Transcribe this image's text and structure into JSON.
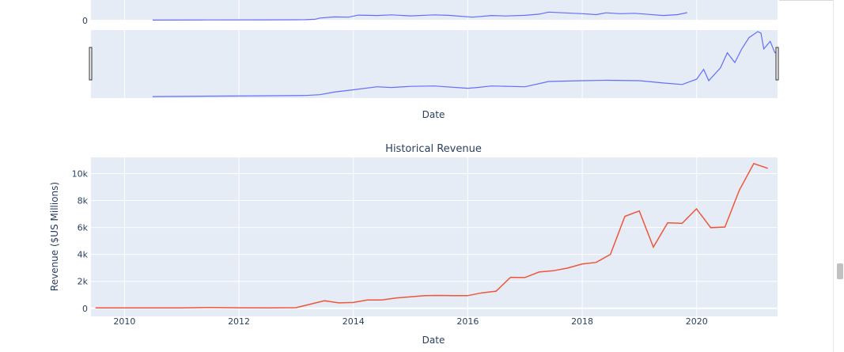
{
  "colors": {
    "plot_bg": "#e5ecf6",
    "grid": "#ffffff",
    "stock_line": "#636efa",
    "revenue_line": "#ef553b",
    "text": "#2a3f5f"
  },
  "chart_data": [
    {
      "type": "line",
      "title": "",
      "xlabel": "",
      "ylabel": "",
      "y_tick_labels": [
        "0"
      ],
      "xlim": [
        "2009-06-01",
        "2021-06-01"
      ],
      "ylim": [
        0,
        900
      ],
      "grid": true,
      "series": [
        {
          "x": [
            "2010-06-29",
            "2011-06-01",
            "2012-06-01",
            "2013-01-01",
            "2013-03-01",
            "2013-05-01",
            "2013-06-01",
            "2013-09-01",
            "2013-12-01",
            "2014-02-01",
            "2014-06-01",
            "2014-09-01",
            "2015-01-01",
            "2015-06-01",
            "2015-09-01",
            "2016-02-01",
            "2016-06-01",
            "2016-09-01",
            "2017-01-01",
            "2017-04-01",
            "2017-06-01",
            "2017-09-01",
            "2018-01-01",
            "2018-04-01",
            "2018-06-01",
            "2018-09-01",
            "2018-12-01",
            "2019-03-01",
            "2019-06-01",
            "2019-09-01",
            "2019-11-01"
          ],
          "y": [
            20,
            27,
            30,
            33,
            38,
            55,
            110,
            160,
            150,
            240,
            220,
            250,
            205,
            250,
            230,
            150,
            220,
            200,
            230,
            280,
            370,
            340,
            300,
            260,
            340,
            300,
            320,
            270,
            220,
            260,
            345
          ]
        }
      ]
    },
    {
      "type": "line",
      "title": "",
      "xlabel": "Date",
      "ylabel": "",
      "xlim": [
        "2009-06-01",
        "2021-06-01"
      ],
      "ylim": [
        0,
        900
      ],
      "grid": true,
      "series": [
        {
          "x": [
            "2010-06-29",
            "2012-06-01",
            "2013-03-01",
            "2013-06-01",
            "2013-09-01",
            "2014-01-01",
            "2014-06-01",
            "2014-09-01",
            "2015-01-01",
            "2015-06-01",
            "2016-01-01",
            "2016-03-01",
            "2016-06-01",
            "2017-01-01",
            "2017-06-01",
            "2018-01-01",
            "2018-06-01",
            "2019-01-01",
            "2019-06-01",
            "2019-10-01",
            "2020-01-01",
            "2020-02-15",
            "2020-03-18",
            "2020-06-01",
            "2020-07-15",
            "2020-09-01",
            "2020-10-15",
            "2020-12-01",
            "2021-01-26",
            "2021-02-15",
            "2021-03-05",
            "2021-04-15",
            "2021-05-15",
            "2021-06-01"
          ],
          "y": [
            20,
            30,
            35,
            45,
            80,
            110,
            150,
            140,
            155,
            160,
            130,
            140,
            160,
            150,
            220,
            230,
            235,
            230,
            200,
            180,
            250,
            380,
            230,
            400,
            600,
            470,
            650,
            800,
            880,
            860,
            650,
            750,
            600,
            620
          ]
        }
      ]
    },
    {
      "type": "line",
      "title": "Historical Revenue",
      "xlabel": "Date",
      "ylabel": "Revenue ($US Millions)",
      "xlim": [
        "2009-06-01",
        "2021-06-01"
      ],
      "ylim": [
        -600,
        11200
      ],
      "y_ticks": [
        0,
        2000,
        4000,
        6000,
        8000,
        10000
      ],
      "y_tick_labels": [
        "0",
        "2k",
        "4k",
        "6k",
        "8k",
        "10k"
      ],
      "x_tick_labels": [
        "2010",
        "2012",
        "2014",
        "2016",
        "2018",
        "2020"
      ],
      "grid": true,
      "series": [
        {
          "x": [
            "2009-06-30",
            "2009-12-31",
            "2010-06-30",
            "2010-12-31",
            "2011-06-30",
            "2011-12-31",
            "2012-06-30",
            "2012-12-31",
            "2013-03-31",
            "2013-06-30",
            "2013-09-30",
            "2013-12-31",
            "2014-03-31",
            "2014-06-30",
            "2014-09-30",
            "2014-12-31",
            "2015-03-31",
            "2015-06-30",
            "2015-09-30",
            "2015-12-31",
            "2016-03-31",
            "2016-06-30",
            "2016-09-30",
            "2016-12-31",
            "2017-03-31",
            "2017-06-30",
            "2017-09-30",
            "2017-12-31",
            "2018-03-31",
            "2018-06-30",
            "2018-09-30",
            "2018-12-31",
            "2019-03-31",
            "2019-06-30",
            "2019-09-30",
            "2019-12-31",
            "2020-03-31",
            "2020-06-30",
            "2020-09-30",
            "2020-12-31",
            "2021-03-31"
          ],
          "y": [
            27,
            27,
            28,
            36,
            58,
            39,
            27,
            46,
            306,
            562,
            405,
            431,
            615,
            620,
            769,
            852,
            940,
            955,
            937,
            939,
            1147,
            1270,
            2298,
            2285,
            2696,
            2790,
            2985,
            3288,
            3409,
            4002,
            6824,
            7226,
            4541,
            6350,
            6303,
            7384,
            5985,
            6036,
            8771,
            10744,
            10389
          ]
        }
      ]
    }
  ]
}
